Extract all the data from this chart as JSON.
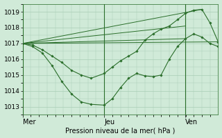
{
  "bg_color": "#d0ead8",
  "grid_color": "#a8cdb5",
  "line_color": "#2a6e2a",
  "marker_color": "#2a6e2a",
  "xlabel": "Pression niveau de la mer( hPa )",
  "yticks": [
    1013,
    1014,
    1015,
    1016,
    1017,
    1018,
    1019
  ],
  "ylim": [
    1012.5,
    1019.5
  ],
  "xtick_labels": [
    "Mer",
    "Jeu",
    "Ven"
  ],
  "xtick_positions": [
    0.0,
    0.417,
    0.833
  ],
  "xlim": [
    0.0,
    1.0
  ],
  "vline_positions": [
    0.0,
    0.417,
    0.833
  ],
  "figsize": [
    3.2,
    2.0
  ],
  "dpi": 100,
  "lines_with_markers": [
    {
      "x": [
        0.0,
        0.05,
        0.1,
        0.15,
        0.2,
        0.25,
        0.3,
        0.35,
        0.417,
        0.458,
        0.5,
        0.542,
        0.583,
        0.625,
        0.667,
        0.708,
        0.75,
        0.792,
        0.833,
        0.875,
        0.917,
        0.958,
        1.0
      ],
      "y": [
        1017.0,
        1016.8,
        1016.4,
        1015.6,
        1014.6,
        1013.8,
        1013.3,
        1013.15,
        1013.1,
        1013.5,
        1014.2,
        1014.8,
        1015.1,
        1014.95,
        1014.9,
        1015.0,
        1016.0,
        1016.8,
        1017.3,
        1017.6,
        1017.4,
        1017.0,
        1016.8
      ]
    },
    {
      "x": [
        0.0,
        0.05,
        0.1,
        0.15,
        0.2,
        0.25,
        0.3,
        0.35,
        0.417,
        0.458,
        0.5,
        0.542,
        0.583,
        0.625,
        0.667,
        0.708,
        0.75,
        0.792,
        0.833,
        0.875,
        0.917,
        0.958,
        1.0
      ],
      "y": [
        1017.0,
        1016.9,
        1016.6,
        1016.2,
        1015.8,
        1015.3,
        1015.0,
        1014.8,
        1015.1,
        1015.5,
        1015.9,
        1016.2,
        1016.5,
        1017.2,
        1017.6,
        1017.9,
        1018.1,
        1018.5,
        1018.9,
        1019.1,
        1019.15,
        1018.3,
        1017.1
      ]
    }
  ],
  "straight_lines": [
    {
      "x": [
        0.0,
        1.0
      ],
      "y": [
        1017.0,
        1017.1
      ]
    },
    {
      "x": [
        0.0,
        0.833
      ],
      "y": [
        1017.0,
        1018.1
      ]
    },
    {
      "x": [
        0.0,
        0.917
      ],
      "y": [
        1017.0,
        1019.15
      ]
    },
    {
      "x": [
        0.0,
        0.833
      ],
      "y": [
        1017.0,
        1017.3
      ]
    }
  ]
}
